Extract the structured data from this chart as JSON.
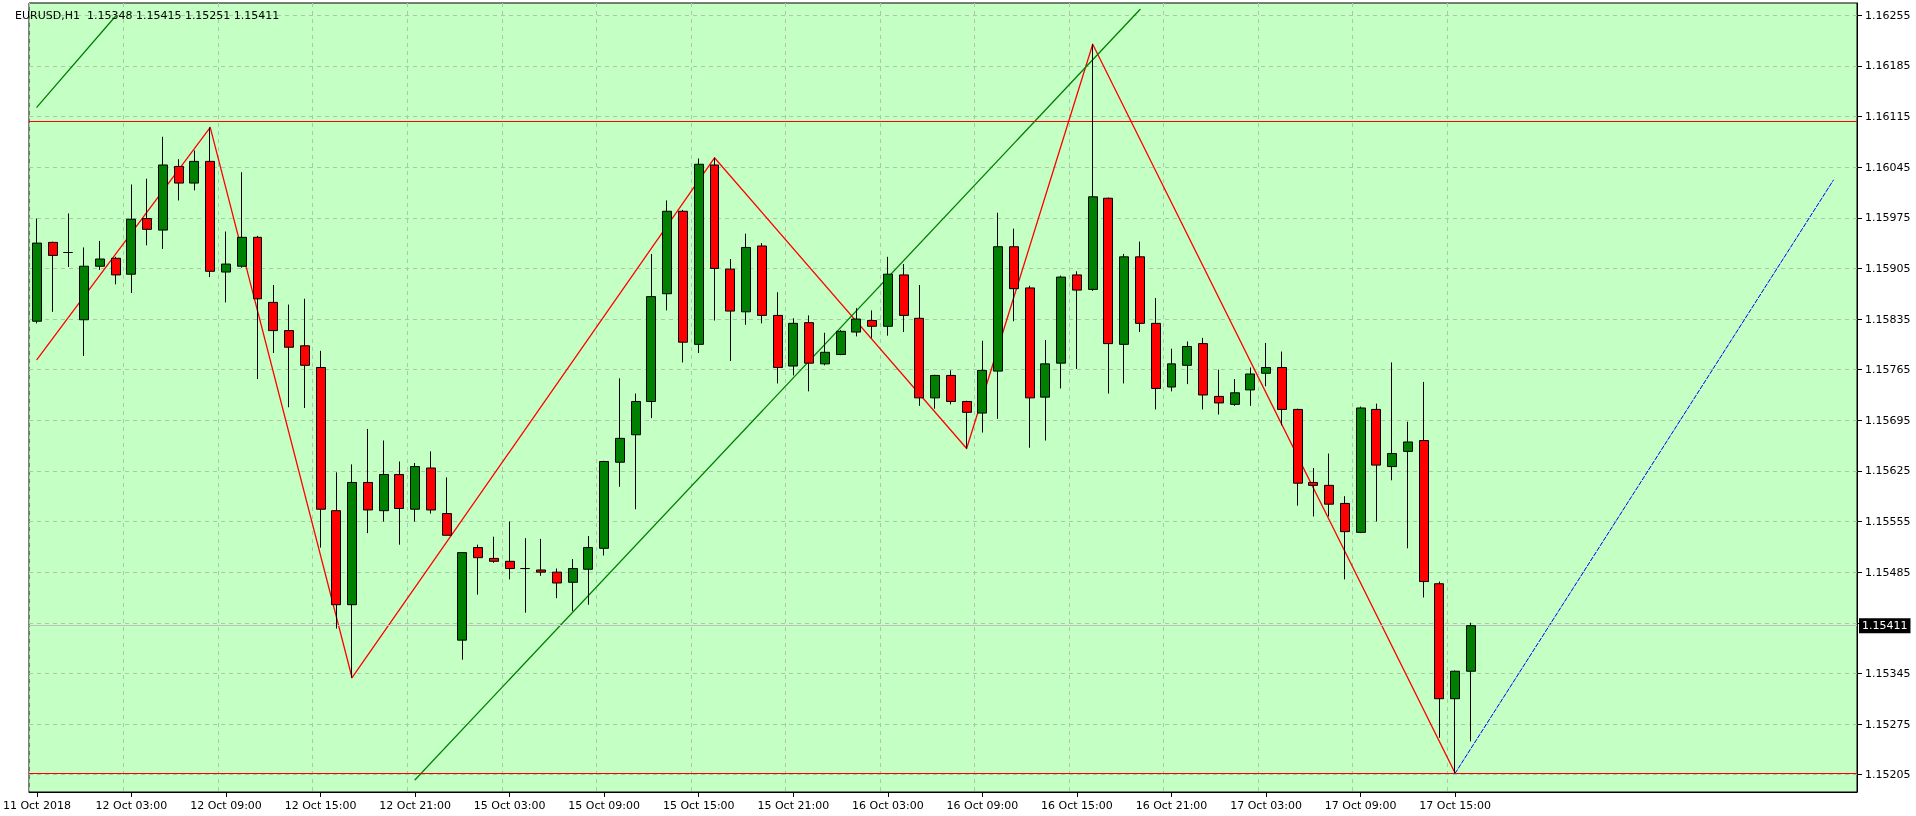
{
  "chart_data": {
    "type": "candlestick",
    "title": "EURUSD,H1  1.15348 1.15415 1.15251 1.15411",
    "categories": [
      "11 Oct 2018",
      null,
      null,
      null,
      null,
      null,
      "12 Oct 03:00",
      null,
      null,
      null,
      null,
      null,
      "12 Oct 09:00",
      null,
      null,
      null,
      null,
      null,
      "12 Oct 15:00",
      null,
      null,
      null,
      null,
      null,
      "12 Oct 21:00",
      null,
      null,
      null,
      null,
      null,
      "15 Oct 03:00",
      null,
      null,
      null,
      null,
      null,
      "15 Oct 09:00",
      null,
      null,
      null,
      null,
      null,
      "15 Oct 15:00",
      null,
      null,
      null,
      null,
      null,
      "15 Oct 21:00",
      null,
      null,
      null,
      null,
      null,
      "16 Oct 03:00",
      null,
      null,
      null,
      null,
      null,
      "16 Oct 09:00",
      null,
      null,
      null,
      null,
      null,
      "16 Oct 15:00",
      null,
      null,
      null,
      null,
      null,
      "16 Oct 21:00",
      null,
      null,
      null,
      null,
      null,
      "17 Oct 03:00",
      null,
      null,
      null,
      null,
      null,
      "17 Oct 09:00",
      null,
      null,
      null,
      null,
      null,
      "17 Oct 15:00",
      null,
      null,
      null,
      null,
      null,
      null,
      null,
      null,
      null,
      null,
      null,
      null,
      null,
      null,
      null,
      null,
      null,
      null,
      null,
      null,
      null,
      null,
      null,
      null,
      null
    ],
    "ohlc": [
      [
        1.15832,
        1.15974,
        1.15829,
        1.1594
      ],
      [
        1.15941,
        1.15942,
        1.15845,
        1.15923
      ],
      [
        1.15927,
        1.15981,
        1.15907,
        1.15927
      ],
      [
        1.15834,
        1.15934,
        1.15784,
        1.15908
      ],
      [
        1.15908,
        1.15943,
        1.15903,
        1.15918
      ],
      [
        1.15919,
        1.15921,
        1.15883,
        1.15896
      ],
      [
        1.15897,
        1.16021,
        1.15871,
        1.15973
      ],
      [
        1.15974,
        1.16029,
        1.15937,
        1.15959
      ],
      [
        1.15958,
        1.16087,
        1.15932,
        1.16048
      ],
      [
        1.16046,
        1.16056,
        1.15999,
        1.16023
      ],
      [
        1.16023,
        1.16068,
        1.16013,
        1.16053
      ],
      [
        1.16053,
        1.161,
        1.15893,
        1.15901
      ],
      [
        1.159,
        1.15956,
        1.15858,
        1.15911
      ],
      [
        1.15908,
        1.16038,
        1.15906,
        1.15948
      ],
      [
        1.15948,
        1.1595,
        1.15752,
        1.15863
      ],
      [
        1.15858,
        1.15882,
        1.15788,
        1.15819
      ],
      [
        1.15819,
        1.15855,
        1.15713,
        1.15796
      ],
      [
        1.15798,
        1.15863,
        1.15712,
        1.15771
      ],
      [
        1.15768,
        1.15791,
        1.15519,
        1.15572
      ],
      [
        1.1557,
        1.15623,
        1.15407,
        1.1544
      ],
      [
        1.1544,
        1.15634,
        1.15339,
        1.15609
      ],
      [
        1.15609,
        1.15683,
        1.15539,
        1.15571
      ],
      [
        1.1557,
        1.15667,
        1.15555,
        1.1562
      ],
      [
        1.1562,
        1.15638,
        1.15523,
        1.15573
      ],
      [
        1.15572,
        1.15636,
        1.15555,
        1.15631
      ],
      [
        1.15629,
        1.15652,
        1.15566,
        1.15571
      ],
      [
        1.15566,
        1.15616,
        1.15536,
        1.15536
      ],
      [
        1.15391,
        1.15512,
        1.15364,
        1.15512
      ],
      [
        1.15519,
        1.15523,
        1.15454,
        1.15505
      ],
      [
        1.15504,
        1.15534,
        1.15498,
        1.155
      ],
      [
        1.155,
        1.15555,
        1.15475,
        1.1549
      ],
      [
        1.1549,
        1.15532,
        1.15429,
        1.1549
      ],
      [
        1.15488,
        1.15531,
        1.1548,
        1.15485
      ],
      [
        1.15485,
        1.1549,
        1.15449,
        1.1547
      ],
      [
        1.15471,
        1.15503,
        1.15431,
        1.1549
      ],
      [
        1.15489,
        1.15535,
        1.1544,
        1.15519
      ],
      [
        1.15518,
        1.15639,
        1.15508,
        1.15638
      ],
      [
        1.15637,
        1.15753,
        1.15603,
        1.1567
      ],
      [
        1.15675,
        1.15732,
        1.15572,
        1.15721
      ],
      [
        1.15721,
        1.15925,
        1.15698,
        1.15866
      ],
      [
        1.1587,
        1.15999,
        1.15847,
        1.15984
      ],
      [
        1.15984,
        1.15986,
        1.15775,
        1.15803
      ],
      [
        1.158,
        1.16057,
        1.15788,
        1.16049
      ],
      [
        1.16048,
        1.16058,
        1.15833,
        1.15905
      ],
      [
        1.15904,
        1.15918,
        1.15777,
        1.15846
      ],
      [
        1.15845,
        1.15953,
        1.15827,
        1.15934
      ],
      [
        1.15936,
        1.1594,
        1.15829,
        1.1584
      ],
      [
        1.1584,
        1.15872,
        1.15746,
        1.15768
      ],
      [
        1.1577,
        1.15836,
        1.15757,
        1.15829
      ],
      [
        1.1583,
        1.1584,
        1.15735,
        1.15774
      ],
      [
        1.15773,
        1.15816,
        1.15771,
        1.15789
      ],
      [
        1.15786,
        1.1582,
        1.15785,
        1.15818
      ],
      [
        1.15817,
        1.1585,
        1.15811,
        1.15835
      ],
      [
        1.15833,
        1.15847,
        1.15809,
        1.15825
      ],
      [
        1.15825,
        1.15921,
        1.15812,
        1.15897
      ],
      [
        1.15896,
        1.15911,
        1.15817,
        1.1584
      ],
      [
        1.15836,
        1.15882,
        1.15715,
        1.15726
      ],
      [
        1.15726,
        1.15758,
        1.15711,
        1.15757
      ],
      [
        1.15757,
        1.15764,
        1.15717,
        1.15721
      ],
      [
        1.15721,
        1.15722,
        1.15656,
        1.15706
      ],
      [
        1.15705,
        1.15805,
        1.15678,
        1.15764
      ],
      [
        1.15763,
        1.15982,
        1.15697,
        1.15935
      ],
      [
        1.15935,
        1.1596,
        1.15832,
        1.15877
      ],
      [
        1.15878,
        1.15881,
        1.15657,
        1.15726
      ],
      [
        1.15727,
        1.15806,
        1.15667,
        1.15773
      ],
      [
        1.15774,
        1.15895,
        1.15739,
        1.15893
      ],
      [
        1.15896,
        1.15901,
        1.15766,
        1.15875
      ],
      [
        1.15876,
        1.16215,
        1.15874,
        1.16004
      ],
      [
        1.16002,
        1.16003,
        1.15732,
        1.15801
      ],
      [
        1.158,
        1.15925,
        1.15746,
        1.15921
      ],
      [
        1.15921,
        1.15942,
        1.15817,
        1.15829
      ],
      [
        1.15829,
        1.15864,
        1.1571,
        1.15739
      ],
      [
        1.15741,
        1.15794,
        1.15735,
        1.15773
      ],
      [
        1.15771,
        1.15804,
        1.15745,
        1.15797
      ],
      [
        1.15801,
        1.15809,
        1.1571,
        1.1573
      ],
      [
        1.15728,
        1.15765,
        1.15703,
        1.15719
      ],
      [
        1.15717,
        1.15752,
        1.15715,
        1.15733
      ],
      [
        1.15737,
        1.15768,
        1.15715,
        1.15759
      ],
      [
        1.1576,
        1.15802,
        1.15742,
        1.15768
      ],
      [
        1.15768,
        1.1579,
        1.15688,
        1.1571
      ],
      [
        1.1571,
        1.15711,
        1.15577,
        1.15608
      ],
      [
        1.15609,
        1.15629,
        1.15562,
        1.15605
      ],
      [
        1.15605,
        1.15649,
        1.15562,
        1.15579
      ],
      [
        1.1558,
        1.1559,
        1.15475,
        1.15541
      ],
      [
        1.1554,
        1.15714,
        1.15539,
        1.15712
      ],
      [
        1.1571,
        1.15718,
        1.15555,
        1.15633
      ],
      [
        1.15631,
        1.15775,
        1.15612,
        1.15649
      ],
      [
        1.15652,
        1.15693,
        1.15518,
        1.15665
      ],
      [
        1.15667,
        1.15748,
        1.1545,
        1.15472
      ],
      [
        1.15469,
        1.15472,
        1.15256,
        1.1531
      ],
      [
        1.1531,
        1.15349,
        1.15207,
        1.15348
      ],
      [
        1.15348,
        1.15415,
        1.15251,
        1.15411
      ],
      null,
      null,
      null,
      null,
      null,
      null,
      null,
      null,
      null,
      null,
      null,
      null,
      null,
      null,
      null,
      null,
      null,
      null,
      null,
      null,
      null,
      null,
      null,
      null
    ],
    "colors": [
      "#008000",
      "#ff0000",
      "#000000",
      "#008000",
      "#008000",
      "#ff0000",
      "#008000",
      "#ff0000",
      "#008000",
      "#ff0000",
      "#008000",
      "#ff0000",
      "#008000",
      "#008000",
      "#ff0000",
      "#ff0000",
      "#ff0000",
      "#ff0000",
      "#ff0000",
      "#ff0000",
      "#008000",
      "#ff0000",
      "#008000",
      "#ff0000",
      "#008000",
      "#ff0000",
      "#ff0000",
      "#008000",
      "#ff0000",
      "#ff0000",
      "#ff0000",
      "#000000",
      "#ff0000",
      "#ff0000",
      "#008000",
      "#008000",
      "#008000",
      "#008000",
      "#008000",
      "#008000",
      "#008000",
      "#ff0000",
      "#008000",
      "#ff0000",
      "#ff0000",
      "#008000",
      "#ff0000",
      "#ff0000",
      "#008000",
      "#ff0000",
      "#008000",
      "#008000",
      "#008000",
      "#ff0000",
      "#008000",
      "#ff0000",
      "#ff0000",
      "#008000",
      "#ff0000",
      "#ff0000",
      "#008000",
      "#008000",
      "#ff0000",
      "#ff0000",
      "#008000",
      "#008000",
      "#ff0000",
      "#008000",
      "#ff0000",
      "#008000",
      "#ff0000",
      "#ff0000",
      "#008000",
      "#008000",
      "#ff0000",
      "#ff0000",
      "#008000",
      "#008000",
      "#008000",
      "#ff0000",
      "#ff0000",
      "#ff0000",
      "#ff0000",
      "#ff0000",
      "#008000",
      "#ff0000",
      "#008000",
      "#008000",
      "#ff0000",
      "#ff0000",
      "#008000",
      "#008000",
      null,
      null,
      null,
      null,
      null,
      null,
      null,
      null,
      null,
      null,
      null,
      null,
      null,
      null,
      null,
      null,
      null,
      null,
      null,
      null,
      null,
      null,
      null,
      null
    ],
    "series": [
      {
        "type": "line",
        "color": "#ff0000",
        "line_style": "solid",
        "values": [
          1.15779,
          null,
          null,
          null,
          null,
          null,
          null,
          null,
          null,
          null,
          null,
          1.161,
          null,
          null,
          null,
          null,
          null,
          null,
          null,
          null,
          1.15339,
          null,
          null,
          null,
          null,
          null,
          null,
          null,
          null,
          null,
          null,
          null,
          null,
          null,
          null,
          null,
          null,
          null,
          null,
          null,
          null,
          null,
          null,
          1.16058,
          null,
          null,
          null,
          null,
          null,
          null,
          null,
          null,
          null,
          null,
          null,
          null,
          null,
          null,
          null,
          1.15656,
          null,
          null,
          null,
          null,
          null,
          null,
          null,
          1.16215,
          null,
          null,
          null,
          null,
          null,
          null,
          null,
          null,
          null,
          null,
          null,
          null,
          null,
          null,
          null,
          null,
          null,
          null,
          null,
          null,
          null,
          null,
          1.15207,
          null,
          null,
          null,
          null,
          null,
          null,
          null,
          null,
          null,
          null,
          null,
          null,
          null,
          null,
          null,
          null,
          null,
          null,
          null,
          null,
          null,
          null,
          null,
          null,
          null
        ]
      },
      {
        "type": "line",
        "color": "#008000",
        "line_style": "solid",
        "values": [
          1.16128,
          null,
          null,
          null,
          null,
          1.16254,
          null,
          null,
          null,
          null,
          null,
          null,
          null,
          null,
          null,
          null,
          null,
          null,
          null,
          null,
          null,
          null,
          null,
          null,
          null,
          null,
          null,
          null,
          null,
          null,
          null,
          null,
          null,
          null,
          null,
          null,
          null,
          null,
          null,
          null,
          null,
          null,
          null,
          null,
          null,
          null,
          null,
          null,
          null,
          null,
          null,
          null,
          null,
          null,
          null,
          null,
          null,
          null,
          null,
          null,
          null,
          null,
          null,
          null,
          null,
          null,
          null,
          null,
          null,
          null,
          null,
          null,
          null,
          null,
          null,
          null,
          null,
          null,
          null,
          null,
          null,
          null,
          null,
          null,
          null,
          null,
          null,
          null,
          null,
          null,
          null,
          null,
          null,
          null,
          null,
          null,
          null,
          null,
          null,
          null,
          null,
          null,
          null,
          null,
          null,
          null,
          null,
          null,
          null,
          null,
          null,
          null,
          null,
          null,
          null,
          null
        ]
      },
      {
        "type": "line",
        "color": "#008000",
        "line_style": "solid",
        "values": [
          null,
          null,
          null,
          null,
          null,
          null,
          null,
          null,
          null,
          null,
          null,
          null,
          null,
          null,
          null,
          null,
          null,
          null,
          null,
          null,
          null,
          null,
          null,
          null,
          1.15198,
          null,
          null,
          null,
          null,
          null,
          null,
          null,
          null,
          null,
          null,
          null,
          null,
          null,
          null,
          null,
          null,
          null,
          null,
          null,
          null,
          null,
          null,
          null,
          null,
          null,
          null,
          null,
          null,
          null,
          null,
          null,
          null,
          null,
          null,
          null,
          null,
          null,
          null,
          null,
          null,
          null,
          null,
          null,
          null,
          null,
          1.16263,
          null,
          null,
          null,
          null,
          null,
          null,
          null,
          null,
          null,
          null,
          null,
          null,
          null,
          null,
          null,
          null,
          null,
          null,
          null,
          null,
          null,
          null,
          null,
          null,
          null,
          null,
          null,
          null,
          null,
          null,
          null,
          null,
          null,
          null,
          null,
          null,
          null,
          null,
          null,
          null,
          null,
          null,
          null,
          null,
          null
        ]
      },
      {
        "type": "line",
        "color": "#0000ff",
        "line_style": "dashed",
        "values": [
          null,
          null,
          null,
          null,
          null,
          null,
          null,
          null,
          null,
          null,
          null,
          null,
          null,
          null,
          null,
          null,
          null,
          null,
          null,
          null,
          null,
          null,
          null,
          null,
          null,
          null,
          null,
          null,
          null,
          null,
          null,
          null,
          null,
          null,
          null,
          null,
          null,
          null,
          null,
          null,
          null,
          null,
          null,
          null,
          null,
          null,
          null,
          null,
          null,
          null,
          null,
          null,
          null,
          null,
          null,
          null,
          null,
          null,
          null,
          null,
          null,
          null,
          null,
          null,
          null,
          null,
          null,
          null,
          null,
          null,
          null,
          null,
          null,
          null,
          null,
          null,
          null,
          null,
          null,
          null,
          null,
          null,
          null,
          null,
          null,
          null,
          null,
          null,
          null,
          null,
          1.15207,
          null,
          null,
          null,
          null,
          null,
          null,
          null,
          null,
          null,
          null,
          null,
          null,
          null,
          null,
          null,
          null,
          null,
          null,
          null,
          null,
          null,
          null,
          null,
          1.16027,
          null
        ]
      }
    ],
    "ylim": [
      1.15181,
      1.16272
    ],
    "yticks": [
      1.15205,
      1.15275,
      1.15345,
      {
        "value": 1.15415,
        "label": null
      },
      1.15485,
      1.15555,
      1.15625,
      1.15695,
      1.15765,
      1.15835,
      1.15905,
      1.15975,
      1.16045,
      1.16115,
      1.16185,
      1.16255
    ],
    "ref_lines": [
      {
        "axis": "y",
        "value": 1.16108,
        "color": "#ff0000"
      },
      {
        "axis": "y",
        "value": 1.15207,
        "color": "#ff0000"
      },
      {
        "axis": "y",
        "value": 1.15411,
        "label": "1.15411",
        "color": "#c0c0c0"
      }
    ],
    "grid": true
  }
}
